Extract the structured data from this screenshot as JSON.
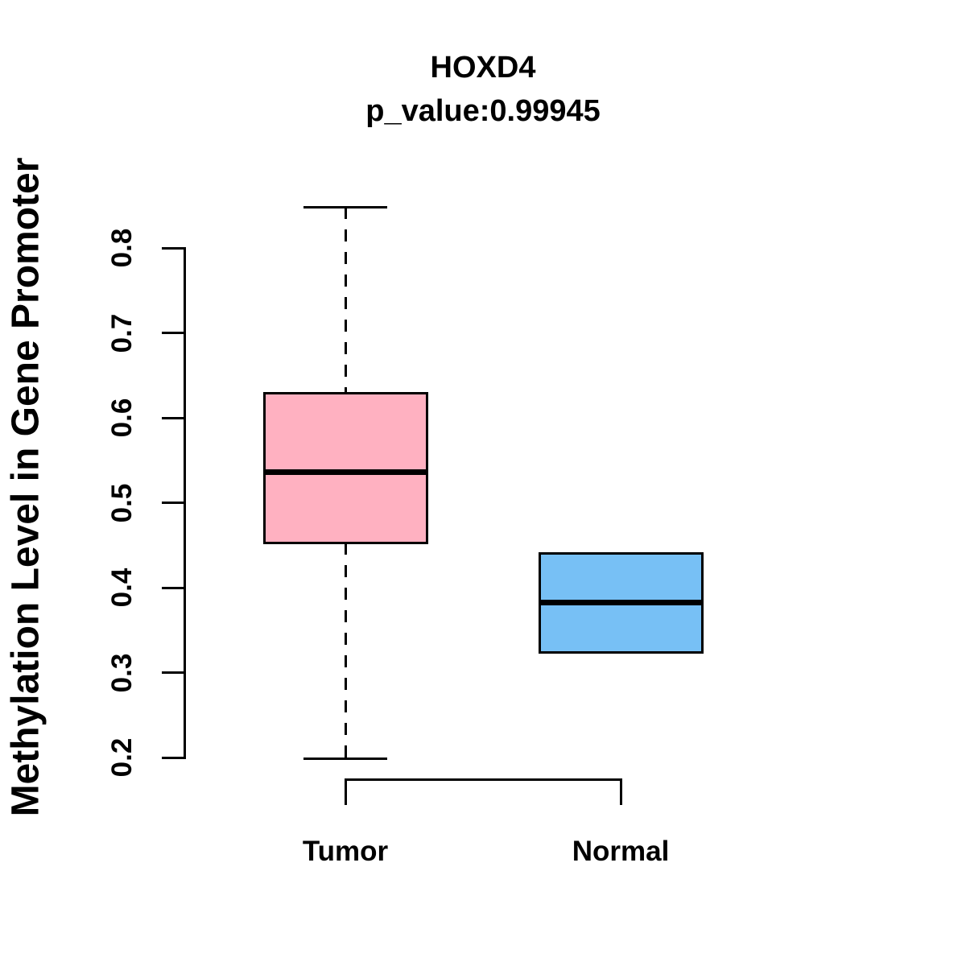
{
  "title": "HOXD4",
  "subtitle": "p_value:0.99945",
  "ylabel": "Methylation Level in Gene Promoter",
  "colors": {
    "tumor_fill": "#ffb1c1",
    "normal_fill": "#77c0f5",
    "axis": "#000000",
    "background": "#ffffff"
  },
  "chart_data": {
    "type": "boxplot",
    "title": "HOXD4",
    "subtitle": "p_value:0.99945",
    "xlabel": "",
    "ylabel": "Methylation Level in Gene Promoter",
    "ylim": [
      0.2,
      0.8
    ],
    "yticks": [
      0.2,
      0.3,
      0.4,
      0.5,
      0.6,
      0.7,
      0.8
    ],
    "ytick_labels": [
      "0.2",
      "0.3",
      "0.4",
      "0.5",
      "0.6",
      "0.7",
      "0.8"
    ],
    "grid": false,
    "legend_position": "none",
    "groups": [
      {
        "label": "Tumor",
        "color": "#ffb1c1",
        "whisker_low": 0.199,
        "q1": 0.453,
        "median": 0.536,
        "q3": 0.629,
        "whisker_high": 0.848,
        "whisker_style": "dashed"
      },
      {
        "label": "Normal",
        "color": "#77c0f5",
        "whisker_low": 0.324,
        "q1": 0.324,
        "median": 0.382,
        "q3": 0.44,
        "whisker_high": 0.44,
        "whisker_style": "dashed"
      }
    ]
  }
}
